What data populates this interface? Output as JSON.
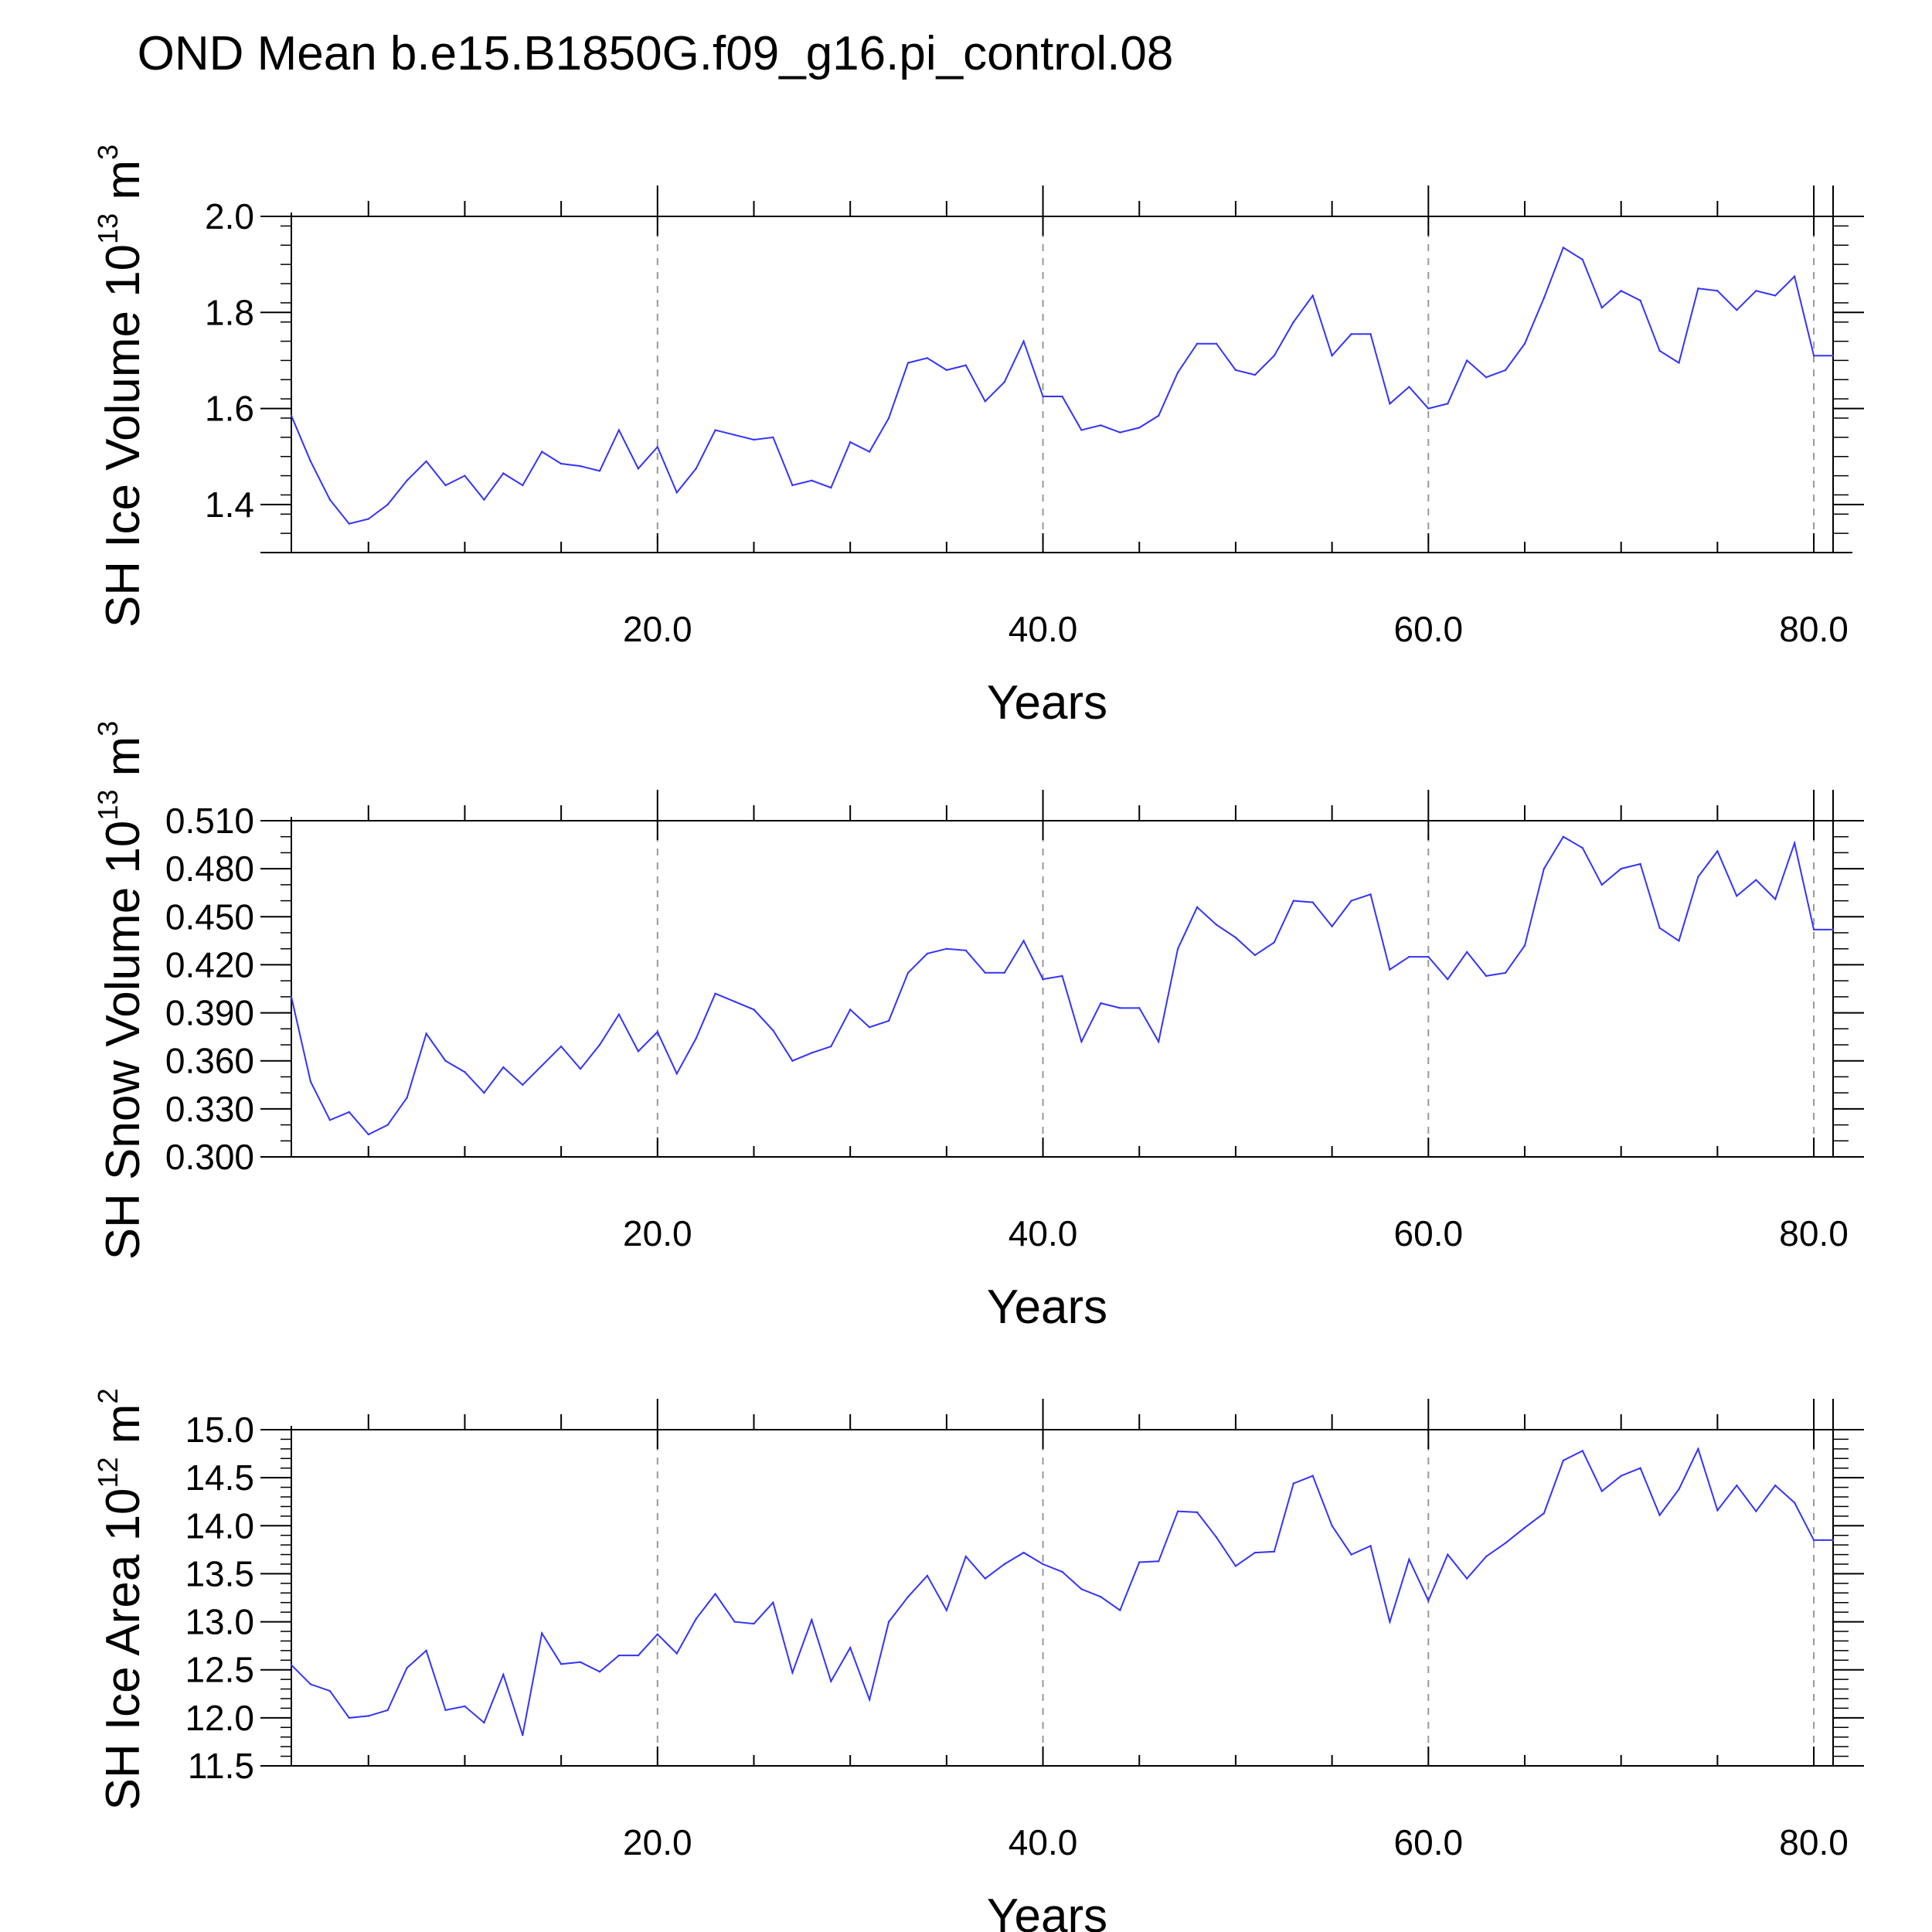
{
  "figure_title": "OND Mean b.e15.B1850G.f09_g16.pi_control.08",
  "colors": {
    "line": "#3333ff",
    "axis": "#000000",
    "grid": "#999999"
  },
  "chart_data": [
    {
      "type": "line",
      "ylabel": {
        "main": "SH Ice Volume 10",
        "exponent": "13",
        "unit_gap": " m",
        "unit_exponent": "3"
      },
      "xlabel": "Years",
      "xlim": [
        1,
        81
      ],
      "ylim": [
        1.3,
        2.0
      ],
      "ytick_values": [
        1.4,
        1.6,
        1.8,
        2.0
      ],
      "ytick_labels": [
        "1.4",
        "1.6",
        "1.8",
        "2.0"
      ],
      "yminor_step": 0.04,
      "xtick_values": [
        20,
        40,
        60,
        80
      ],
      "xtick_labels": [
        "20.0",
        "40.0",
        "60.0",
        "80.0"
      ],
      "xminor_values": [
        5,
        10,
        15,
        25,
        30,
        35,
        45,
        50,
        55,
        65,
        70,
        75
      ],
      "x": [
        1,
        2,
        3,
        4,
        5,
        6,
        7,
        8,
        9,
        10,
        11,
        12,
        13,
        14,
        15,
        16,
        17,
        18,
        19,
        20,
        21,
        22,
        23,
        24,
        25,
        26,
        27,
        28,
        29,
        30,
        31,
        32,
        33,
        34,
        35,
        36,
        37,
        38,
        39,
        40,
        41,
        42,
        43,
        44,
        45,
        46,
        47,
        48,
        49,
        50,
        51,
        52,
        53,
        54,
        55,
        56,
        57,
        58,
        59,
        60,
        61,
        62,
        63,
        64,
        65,
        66,
        67,
        68,
        69,
        70,
        71,
        72,
        73,
        74,
        75,
        76,
        77,
        78,
        79,
        80,
        81
      ],
      "values": [
        1.585,
        1.49,
        1.41,
        1.36,
        1.37,
        1.4,
        1.45,
        1.49,
        1.44,
        1.46,
        1.41,
        1.465,
        1.44,
        1.51,
        1.485,
        1.48,
        1.47,
        1.555,
        1.475,
        1.52,
        1.425,
        1.475,
        1.555,
        1.545,
        1.535,
        1.54,
        1.44,
        1.45,
        1.435,
        1.53,
        1.51,
        1.58,
        1.695,
        1.705,
        1.68,
        1.69,
        1.615,
        1.655,
        1.74,
        1.625,
        1.625,
        1.555,
        1.565,
        1.55,
        1.56,
        1.585,
        1.675,
        1.735,
        1.735,
        1.68,
        1.67,
        1.71,
        1.78,
        1.835,
        1.71,
        1.755,
        1.755,
        1.61,
        1.645,
        1.6,
        1.61,
        1.7,
        1.665,
        1.68,
        1.735,
        1.83,
        1.935,
        1.91,
        1.81,
        1.845,
        1.825,
        1.72,
        1.695,
        1.85,
        1.845,
        1.805,
        1.845,
        1.835,
        1.875,
        1.71,
        1.71
      ]
    },
    {
      "type": "line",
      "ylabel": {
        "main": "SH Snow Volume 10",
        "exponent": "13",
        "unit_gap": " m",
        "unit_exponent": "3"
      },
      "xlabel": "Years",
      "xlim": [
        1,
        81
      ],
      "ylim": [
        0.3,
        0.51
      ],
      "ytick_values": [
        0.3,
        0.33,
        0.36,
        0.39,
        0.42,
        0.45,
        0.48,
        0.51
      ],
      "ytick_labels": [
        "0.300",
        "0.330",
        "0.360",
        "0.390",
        "0.420",
        "0.450",
        "0.480",
        "0.510"
      ],
      "yminor_step": 0.01,
      "xtick_values": [
        20,
        40,
        60,
        80
      ],
      "xtick_labels": [
        "20.0",
        "40.0",
        "60.0",
        "80.0"
      ],
      "xminor_values": [
        5,
        10,
        15,
        25,
        30,
        35,
        45,
        50,
        55,
        65,
        70,
        75
      ],
      "x": [
        1,
        2,
        3,
        4,
        5,
        6,
        7,
        8,
        9,
        10,
        11,
        12,
        13,
        14,
        15,
        16,
        17,
        18,
        19,
        20,
        21,
        22,
        23,
        24,
        25,
        26,
        27,
        28,
        29,
        30,
        31,
        32,
        33,
        34,
        35,
        36,
        37,
        38,
        39,
        40,
        41,
        42,
        43,
        44,
        45,
        46,
        47,
        48,
        49,
        50,
        51,
        52,
        53,
        54,
        55,
        56,
        57,
        58,
        59,
        60,
        61,
        62,
        63,
        64,
        65,
        66,
        67,
        68,
        69,
        70,
        71,
        72,
        73,
        74,
        75,
        76,
        77,
        78,
        79,
        80,
        81
      ],
      "values": [
        0.4,
        0.347,
        0.323,
        0.328,
        0.314,
        0.32,
        0.337,
        0.377,
        0.36,
        0.353,
        0.34,
        0.356,
        0.345,
        0.357,
        0.369,
        0.355,
        0.37,
        0.389,
        0.366,
        0.378,
        0.352,
        0.374,
        0.402,
        0.397,
        0.392,
        0.379,
        0.36,
        0.365,
        0.369,
        0.392,
        0.381,
        0.385,
        0.415,
        0.427,
        0.43,
        0.429,
        0.415,
        0.415,
        0.435,
        0.411,
        0.413,
        0.372,
        0.396,
        0.393,
        0.393,
        0.372,
        0.43,
        0.456,
        0.445,
        0.437,
        0.426,
        0.434,
        0.46,
        0.459,
        0.444,
        0.46,
        0.464,
        0.417,
        0.425,
        0.425,
        0.411,
        0.428,
        0.413,
        0.415,
        0.432,
        0.48,
        0.5,
        0.493,
        0.47,
        0.48,
        0.483,
        0.443,
        0.435,
        0.475,
        0.491,
        0.463,
        0.473,
        0.461,
        0.496,
        0.442,
        0.442
      ]
    },
    {
      "type": "line",
      "ylabel": {
        "main": "SH Ice Area 10",
        "exponent": "12",
        "unit_gap": " m",
        "unit_exponent": "2"
      },
      "xlabel": "Years",
      "xlim": [
        1,
        81
      ],
      "ylim": [
        11.5,
        15.0
      ],
      "ytick_values": [
        11.5,
        12.0,
        12.5,
        13.0,
        13.5,
        14.0,
        14.5,
        15.0
      ],
      "ytick_labels": [
        "11.5",
        "12.0",
        "12.5",
        "13.0",
        "13.5",
        "14.0",
        "14.5",
        "15.0"
      ],
      "yminor_step": 0.1,
      "xtick_values": [
        20,
        40,
        60,
        80
      ],
      "xtick_labels": [
        "20.0",
        "40.0",
        "60.0",
        "80.0"
      ],
      "xminor_values": [
        5,
        10,
        15,
        25,
        30,
        35,
        45,
        50,
        55,
        65,
        70,
        75
      ],
      "x": [
        1,
        2,
        3,
        4,
        5,
        6,
        7,
        8,
        9,
        10,
        11,
        12,
        13,
        14,
        15,
        16,
        17,
        18,
        19,
        20,
        21,
        22,
        23,
        24,
        25,
        26,
        27,
        28,
        29,
        30,
        31,
        32,
        33,
        34,
        35,
        36,
        37,
        38,
        39,
        40,
        41,
        42,
        43,
        44,
        45,
        46,
        47,
        48,
        49,
        50,
        51,
        52,
        53,
        54,
        55,
        56,
        57,
        58,
        59,
        60,
        61,
        62,
        63,
        64,
        65,
        66,
        67,
        68,
        69,
        70,
        71,
        72,
        73,
        74,
        75,
        76,
        77,
        78,
        79,
        80,
        81
      ],
      "values": [
        12.55,
        12.35,
        12.28,
        12.0,
        12.02,
        12.08,
        12.52,
        12.7,
        12.08,
        12.12,
        11.95,
        12.45,
        11.82,
        12.88,
        12.56,
        12.58,
        12.48,
        12.65,
        12.65,
        12.87,
        12.67,
        13.03,
        13.29,
        13.0,
        12.98,
        13.2,
        12.47,
        13.02,
        12.38,
        12.73,
        12.19,
        13.0,
        13.26,
        13.48,
        13.12,
        13.68,
        13.45,
        13.6,
        13.72,
        13.6,
        13.52,
        13.34,
        13.26,
        13.12,
        13.62,
        13.63,
        14.15,
        14.14,
        13.88,
        13.58,
        13.72,
        13.73,
        14.44,
        14.52,
        14.0,
        13.7,
        13.79,
        13.0,
        13.65,
        13.22,
        13.7,
        13.45,
        13.68,
        13.82,
        13.98,
        14.13,
        14.68,
        14.78,
        14.36,
        14.52,
        14.6,
        14.11,
        14.38,
        14.8,
        14.16,
        14.42,
        14.15,
        14.42,
        14.24,
        13.85,
        13.85
      ]
    }
  ]
}
